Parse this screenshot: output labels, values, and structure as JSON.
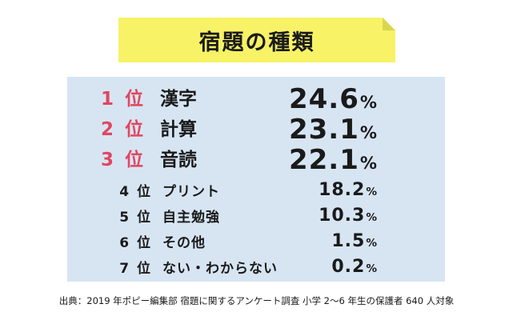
{
  "title": "宿題の種類",
  "source": "出典：2019 年ポピー編集部 宿題に関するアンケート調査 小学 2〜6 年生の保護者 640 人対象",
  "colors": {
    "banner": "#f7f266",
    "panel": "#d7e5f3",
    "top3_rank": "#e0465f",
    "text": "#1a1a1a"
  },
  "chart_data": {
    "type": "table",
    "title": "宿題の種類",
    "unit": "%",
    "rows": [
      {
        "rank": "1 位",
        "label": "漢字",
        "value": "24.6",
        "unit": "%"
      },
      {
        "rank": "2 位",
        "label": "計算",
        "value": "23.1",
        "unit": "%"
      },
      {
        "rank": "3 位",
        "label": "音読",
        "value": "22.1",
        "unit": "%"
      },
      {
        "rank": "4 位",
        "label": "プリント",
        "value": "18.2",
        "unit": "%"
      },
      {
        "rank": "5 位",
        "label": "自主勉強",
        "value": "10.3",
        "unit": "%"
      },
      {
        "rank": "6 位",
        "label": "その他",
        "value": "1.5",
        "unit": "%"
      },
      {
        "rank": "7 位",
        "label": "ない・わからない",
        "value": "0.2",
        "unit": "%"
      }
    ]
  }
}
